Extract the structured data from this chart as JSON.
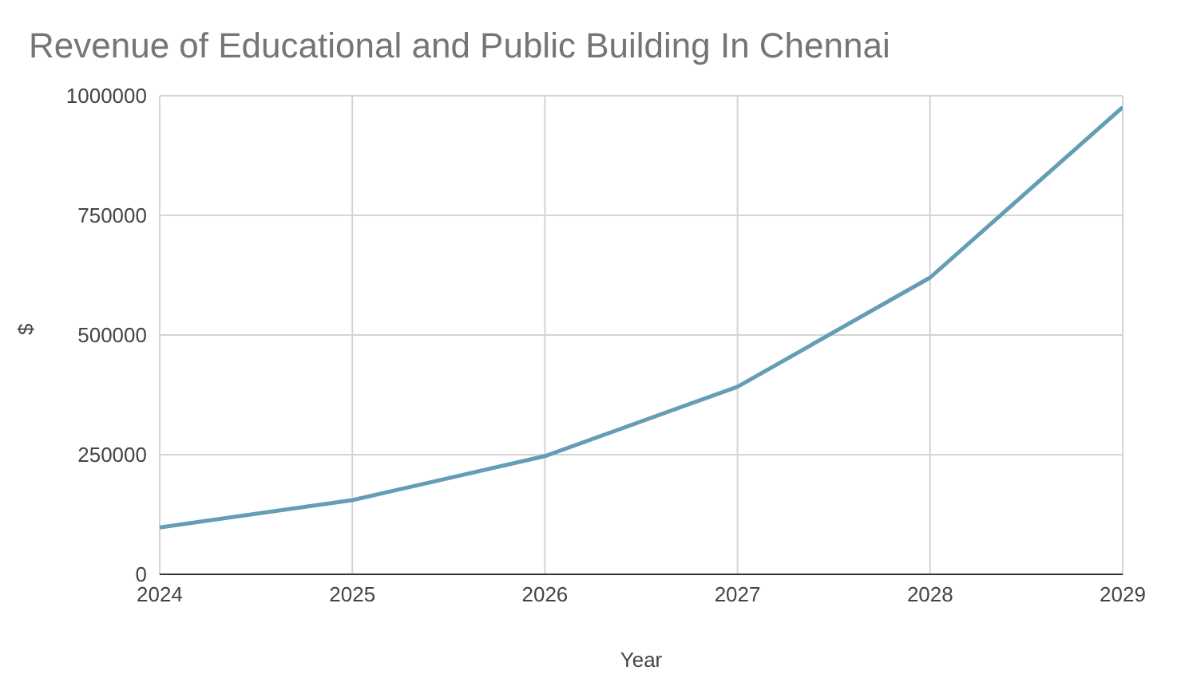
{
  "chart_data": {
    "type": "line",
    "title": "Revenue of Educational and Public Building In Chennai",
    "xlabel": "Year",
    "ylabel": "$",
    "x": [
      2024,
      2025,
      2026,
      2027,
      2028,
      2029
    ],
    "series": [
      {
        "color": "#649db5",
        "values": [
          98000,
          155000,
          247000,
          392000,
          620000,
          976000
        ]
      }
    ],
    "xlim": [
      2024,
      2029
    ],
    "xticks": [
      2024,
      2025,
      2026,
      2027,
      2028,
      2029
    ],
    "ylim": [
      0,
      1000000
    ],
    "yticks": [
      0,
      250000,
      500000,
      750000,
      1000000
    ],
    "grid": true,
    "marker": "none",
    "line_style": "solid"
  }
}
